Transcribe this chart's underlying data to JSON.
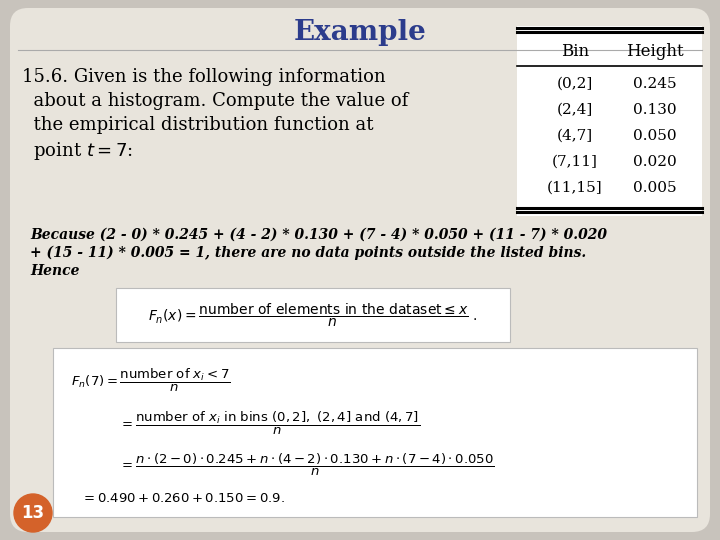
{
  "bg_outer": "#c8c3bc",
  "bg_slide": "#e8e4dc",
  "title": "Example",
  "title_color": "#2c3c8c",
  "title_fontsize": 20,
  "problem_lines": [
    "15.6. Given is the following information",
    "  about a histogram. Compute the value of",
    "  the empirical distribution function at",
    "  point $t = 7$:"
  ],
  "problem_fontsize": 13,
  "table_headers": [
    "Bin",
    "Height"
  ],
  "table_bins": [
    "(0,2]",
    "(2,4]",
    "(4,7]",
    "(7,11]",
    "(11,15]"
  ],
  "table_heights": [
    "0.245",
    "0.130",
    "0.050",
    "0.020",
    "0.005"
  ],
  "because_lines": [
    "Because (2 - 0) * 0.245 + (4 - 2) * 0.130 + (7 - 4) * 0.050 + (11 - 7) * 0.020",
    "+ (15 - 11) * 0.005 = 1, there are no data points outside the listed bins.",
    "Hence"
  ],
  "because_fontsize": 10,
  "slide_number": "13",
  "slide_number_bg": "#d4622a"
}
